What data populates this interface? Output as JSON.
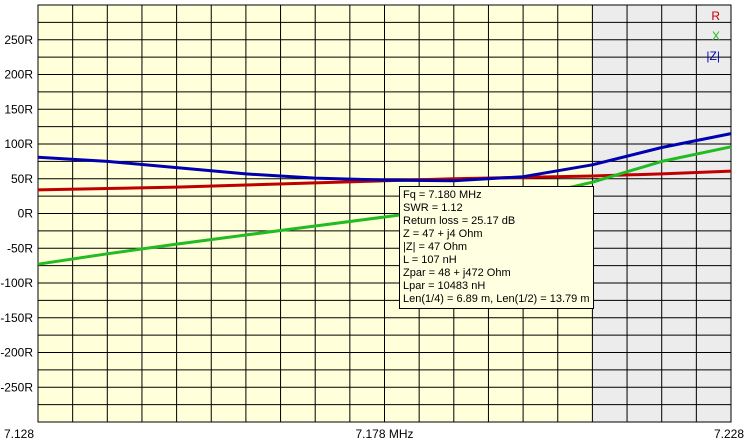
{
  "chart_data": {
    "type": "line",
    "x_ticks": [
      {
        "value": 7.128,
        "label": "7.128"
      },
      {
        "value": 7.178,
        "label": "7.178 MHz"
      },
      {
        "value": 7.228,
        "label": "7.228"
      }
    ],
    "y_ticks": [
      {
        "value": 250,
        "label": "250R"
      },
      {
        "value": 200,
        "label": "200R"
      },
      {
        "value": 150,
        "label": "150R"
      },
      {
        "value": 100,
        "label": "100R"
      },
      {
        "value": 50,
        "label": "50R"
      },
      {
        "value": 0,
        "label": "0R"
      },
      {
        "value": -50,
        "label": "-50R"
      },
      {
        "value": -100,
        "label": "-100R"
      },
      {
        "value": -150,
        "label": "-150R"
      },
      {
        "value": -200,
        "label": "-200R"
      },
      {
        "value": -250,
        "label": "-250R"
      }
    ],
    "xlim": [
      7.128,
      7.228
    ],
    "ylim": [
      -300,
      300
    ],
    "grid": true,
    "legend_position": "top-right",
    "shaded_range": [
      7.208,
      7.228
    ],
    "colors": {
      "plot_bg": "#ffffd9",
      "shaded_bg": "#ececec",
      "grid": "#000000"
    },
    "series": [
      {
        "name": "R",
        "color": "#c00000",
        "x": [
          7.128,
          7.138,
          7.148,
          7.158,
          7.168,
          7.178,
          7.188,
          7.198,
          7.208,
          7.218,
          7.228
        ],
        "y": [
          34,
          36,
          38,
          41,
          44,
          47,
          50,
          52,
          54,
          57,
          61
        ]
      },
      {
        "name": "X",
        "color": "#22bb22",
        "x": [
          7.128,
          7.138,
          7.148,
          7.158,
          7.168,
          7.178,
          7.188,
          7.198,
          7.208,
          7.218,
          7.228
        ],
        "y": [
          -73,
          -58,
          -44,
          -31,
          -18,
          -5,
          8,
          22,
          45,
          75,
          96
        ]
      },
      {
        "name": "|Z|",
        "color": "#0000b0",
        "x": [
          7.128,
          7.138,
          7.148,
          7.158,
          7.168,
          7.178,
          7.188,
          7.198,
          7.208,
          7.218,
          7.228
        ],
        "y": [
          81,
          75,
          66,
          57,
          51,
          48,
          47,
          53,
          70,
          95,
          115
        ]
      }
    ]
  },
  "tooltip": {
    "lines": [
      "Fq = 7.180 MHz",
      "SWR = 1.12",
      "Return loss = 25.17 dB",
      "Z = 47 + j4 Ohm",
      "|Z| = 47 Ohm",
      "L = 107 nH",
      "Zpar = 48 + j472 Ohm",
      "Lpar = 10483 nH",
      "Len(1/4) = 6.89 m, Len(1/2) = 13.79 m"
    ]
  }
}
